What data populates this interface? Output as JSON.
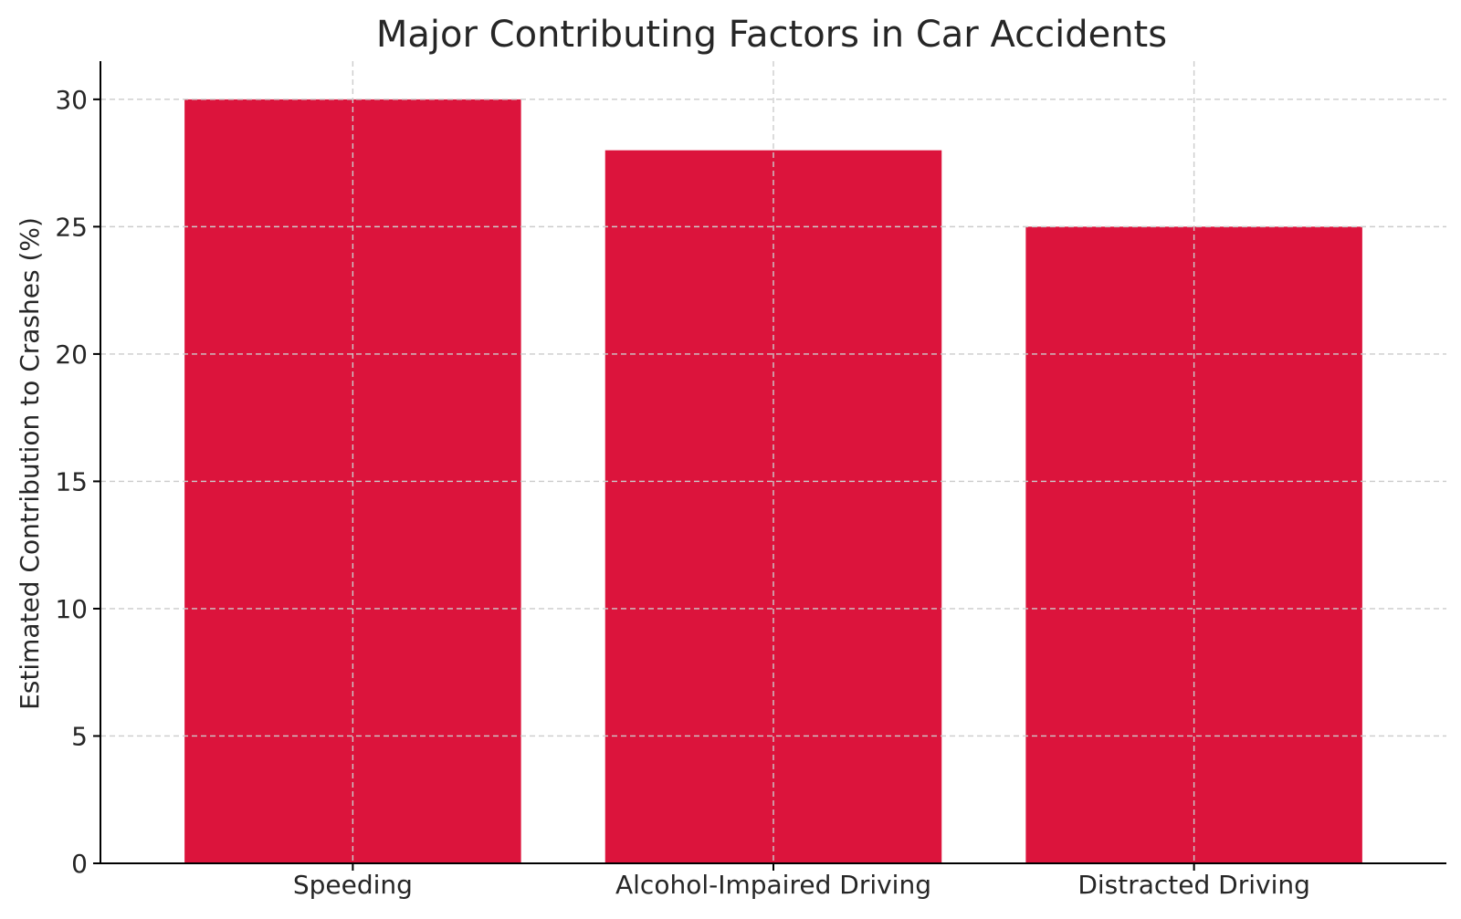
{
  "chart_data": {
    "type": "bar",
    "title": "Major Contributing Factors in Car Accidents",
    "xlabel": "",
    "ylabel": "Estimated Contribution to Crashes (%)",
    "categories": [
      "Speeding",
      "Alcohol-Impaired Driving",
      "Distracted Driving"
    ],
    "values": [
      30,
      28,
      25
    ],
    "ylim": [
      0,
      31.5
    ],
    "yticks": [
      0,
      5,
      10,
      15,
      20,
      25,
      30
    ],
    "grid": true,
    "legend": "none",
    "bar_color": "#DC143C"
  }
}
